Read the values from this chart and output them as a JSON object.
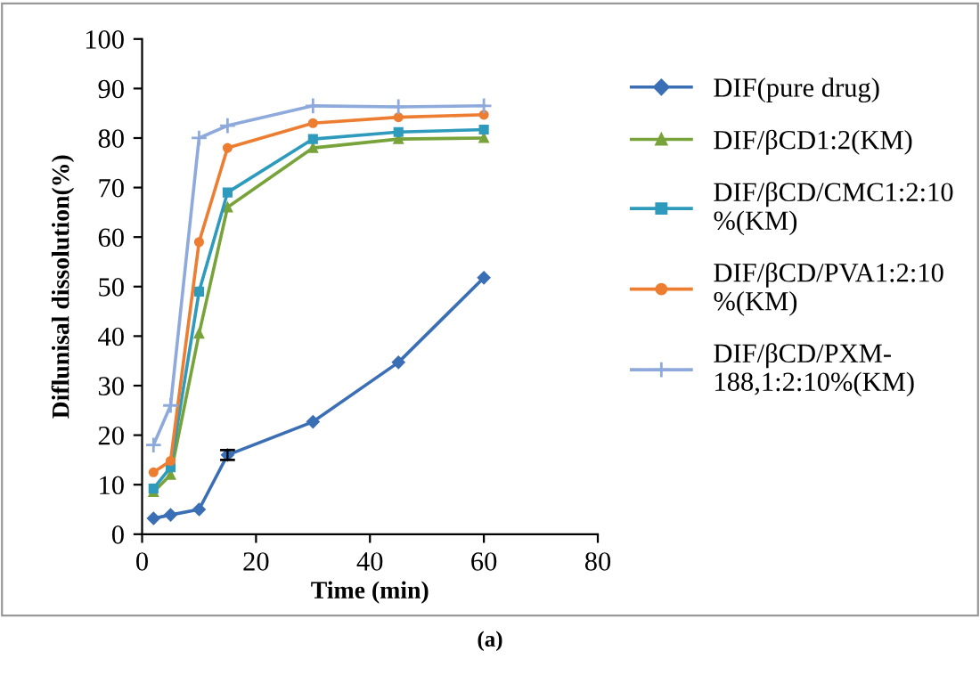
{
  "chart_data": {
    "type": "line",
    "xlabel": "Time (min)",
    "ylabel": "Diflunisal dissolution(%)",
    "x": [
      2,
      5,
      10,
      15,
      30,
      45,
      60
    ],
    "series": [
      {
        "name": "DIF(pure drug)",
        "color": "#3a6eb5",
        "marker": "diamond",
        "values": [
          3.2,
          3.9,
          5,
          16,
          22.7,
          34.7,
          51.8
        ],
        "errors": [
          null,
          null,
          null,
          1,
          null,
          null,
          null
        ]
      },
      {
        "name": "DIF/βCD1:2(KM)",
        "color": "#77a33a",
        "marker": "triangle",
        "values": [
          8.5,
          12,
          40.5,
          66,
          78,
          79.8,
          80
        ]
      },
      {
        "name": "DIF/βCD/CMC1:2:10\n%(KM)",
        "color": "#2e9bbd",
        "marker": "square",
        "values": [
          9.2,
          13.5,
          49,
          69,
          79.8,
          81.2,
          81.7
        ]
      },
      {
        "name": "DIF/βCD/PVA1:2:10\n%(KM)",
        "color": "#ed7d31",
        "marker": "circle",
        "values": [
          12.5,
          14.8,
          59,
          78,
          83,
          84.2,
          84.7
        ]
      },
      {
        "name": "DIF/βCD/PXM-\n188,1:2:10%(KM)",
        "color": "#8eaadc",
        "marker": "cross",
        "values": [
          18,
          26,
          80,
          82.5,
          86.5,
          86.3,
          86.5
        ]
      }
    ],
    "xlim": [
      0,
      80
    ],
    "xticks": [
      0,
      20,
      40,
      60,
      80
    ],
    "ylim": [
      0,
      100
    ],
    "yticks": [
      0,
      10,
      20,
      30,
      40,
      50,
      60,
      70,
      80,
      90,
      100
    ],
    "grid": false,
    "legend": "right",
    "annotations": [
      "(a)"
    ]
  }
}
